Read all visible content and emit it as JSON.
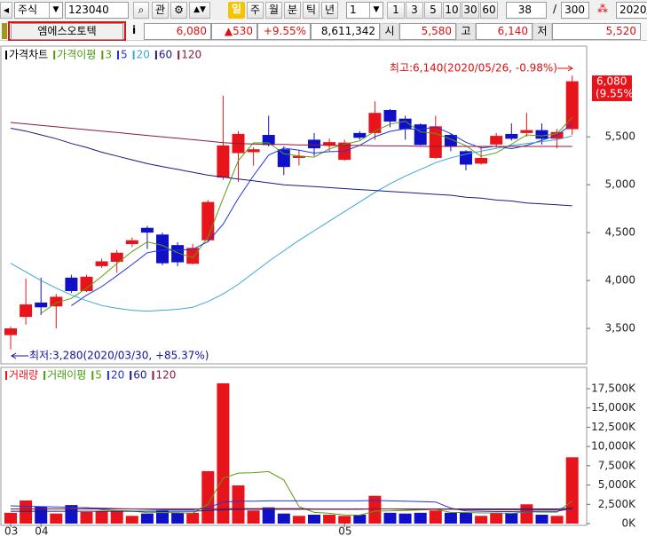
{
  "toolbar": {
    "market": "주식",
    "code": "123040",
    "favorite": "관",
    "active_period": "일",
    "periods": [
      "주",
      "월",
      "분",
      "틱",
      "년"
    ],
    "interval": "1",
    "intervals": [
      "1",
      "3",
      "5",
      "10",
      "30",
      "60"
    ],
    "count": "38",
    "separator": "/",
    "total": "300",
    "date": "2020/"
  },
  "quote": {
    "name": "엠에스오토텍",
    "info": "i",
    "price": "6,080",
    "change": "▲530",
    "change_pct": "+9.55%",
    "volume": "8,611,342",
    "open_label": "시",
    "open": "5,580",
    "high_label": "고",
    "high": "6,140",
    "low_label": "저",
    "low": "5,520"
  },
  "chart_data": [
    {
      "type": "candlestick",
      "title": "가격차트",
      "title_color": "#000000",
      "ma_label": "가격이평",
      "ma_label_color": "#4a9a10",
      "up_color": "#e8141c",
      "down_color": "#1010c8",
      "open": [
        3430,
        3620,
        3770,
        3730,
        4030,
        3890,
        4150,
        4195,
        4380,
        4550,
        4480,
        4370,
        4175,
        4420,
        5075,
        5330,
        5340,
        5520,
        5370,
        5280,
        5470,
        5410,
        5260,
        5540,
        5540,
        5780,
        5690,
        5630,
        5280,
        5520,
        5350,
        5220,
        5420,
        5530,
        5540,
        5570,
        5480,
        5580
      ],
      "high": [
        3520,
        4020,
        4030,
        3860,
        4060,
        4060,
        4230,
        4320,
        4450,
        4570,
        4500,
        4400,
        4380,
        4840,
        5930,
        5560,
        5390,
        5720,
        5400,
        5360,
        5540,
        5480,
        5470,
        5560,
        5870,
        5790,
        5720,
        5640,
        5720,
        5530,
        5360,
        5400,
        5540,
        5640,
        5750,
        5640,
        5580,
        6140
      ],
      "low": [
        3280,
        3540,
        3640,
        3500,
        3870,
        3880,
        4130,
        4080,
        4350,
        4330,
        4160,
        4150,
        4170,
        4400,
        5050,
        5030,
        5200,
        5400,
        5100,
        5200,
        5300,
        5350,
        5250,
        5470,
        5470,
        5600,
        5470,
        5410,
        5270,
        5350,
        5150,
        5210,
        5390,
        5460,
        5500,
        5420,
        5380,
        5520
      ],
      "close": [
        3500,
        3750,
        3720,
        3830,
        3890,
        4040,
        4200,
        4290,
        4420,
        4500,
        4180,
        4190,
        4340,
        4820,
        5410,
        5530,
        5370,
        5415,
        5185,
        5300,
        5380,
        5445,
        5440,
        5490,
        5750,
        5660,
        5580,
        5415,
        5610,
        5400,
        5210,
        5280,
        5510,
        5480,
        5570,
        5480,
        5550,
        6080
      ],
      "series": [
        {
          "name": "3",
          "color": "#5a9e10",
          "values": [
            null,
            null,
            3657,
            3767,
            3813,
            3920,
            4043,
            4177,
            4303,
            4403,
            4367,
            4290,
            4237,
            4450,
            4857,
            5253,
            5437,
            5438,
            5323,
            5300,
            5288,
            5375,
            5422,
            5458,
            5560,
            5633,
            5663,
            5552,
            5535,
            5475,
            5407,
            5297,
            5333,
            5423,
            5520,
            5510,
            5533,
            5703
          ]
        },
        {
          "name": "5",
          "color": "#2233dd",
          "values": [
            null,
            null,
            null,
            null,
            3738,
            3846,
            3936,
            4050,
            4168,
            4290,
            4318,
            4316,
            4326,
            4406,
            4588,
            4858,
            5094,
            5309,
            5382,
            5360,
            5330,
            5345,
            5350,
            5411,
            5501,
            5557,
            5584,
            5579,
            5603,
            5533,
            5443,
            5383,
            5402,
            5376,
            5410,
            5464,
            5518,
            5632
          ]
        },
        {
          "name": "20",
          "color": "#3ba6d8",
          "values": [
            4180,
            4090,
            4000,
            3920,
            3850,
            3790,
            3740,
            3710,
            3690,
            3680,
            3690,
            3700,
            3720,
            3780,
            3860,
            3960,
            4080,
            4200,
            4310,
            4420,
            4520,
            4620,
            4720,
            4820,
            4920,
            5010,
            5090,
            5160,
            5230,
            5280,
            5320,
            5350,
            5380,
            5410,
            5430,
            5450,
            5470,
            5510
          ]
        },
        {
          "name": "60",
          "color": "#1a1a80",
          "values": [
            5590,
            5560,
            5520,
            5480,
            5430,
            5390,
            5340,
            5300,
            5260,
            5220,
            5190,
            5160,
            5130,
            5100,
            5080,
            5060,
            5040,
            5020,
            5000,
            4990,
            4980,
            4970,
            4960,
            4950,
            4940,
            4930,
            4920,
            4910,
            4900,
            4890,
            4870,
            4860,
            4840,
            4830,
            4810,
            4800,
            4790,
            4780
          ]
        },
        {
          "name": "120",
          "color": "#8a1a3a",
          "values": [
            5650,
            5635,
            5620,
            5605,
            5590,
            5575,
            5560,
            5545,
            5530,
            5515,
            5500,
            5485,
            5470,
            5455,
            5440,
            5430,
            5425,
            5420,
            5420,
            5415,
            5415,
            5410,
            5410,
            5410,
            5405,
            5405,
            5405,
            5400,
            5400,
            5400,
            5400,
            5400,
            5400,
            5400,
            5400,
            5400,
            5400,
            5400
          ]
        }
      ],
      "ylim": [
        3130,
        6280
      ],
      "yticks": [
        {
          "value": 3500,
          "label": "3,500"
        },
        {
          "value": 4000,
          "label": "4,000"
        },
        {
          "value": 4500,
          "label": "4,500"
        },
        {
          "value": 5000,
          "label": "5,000"
        },
        {
          "value": 5500,
          "label": "5,500"
        }
      ],
      "annotations": {
        "high": "최고:6,140(2020/05/26, -0.98%)",
        "low": "최저:3,280(2020/03/30, +85.37%)"
      },
      "last_label": {
        "price": "6,080",
        "pct": "(9.55%)"
      }
    },
    {
      "type": "bar",
      "title": "거래량",
      "title_color": "#e8141c",
      "ma_label": "거래이평",
      "ma_label_color": "#4a9a10",
      "categories": [
        "03",
        null,
        "04",
        null,
        null,
        null,
        null,
        null,
        null,
        null,
        null,
        null,
        null,
        null,
        null,
        null,
        null,
        null,
        null,
        null,
        null,
        null,
        "05",
        null,
        null,
        null,
        null,
        null,
        null,
        null,
        null,
        null,
        null,
        null,
        null,
        null,
        null,
        null
      ],
      "values": [
        1400,
        3000,
        2200,
        1300,
        2400,
        1500,
        1600,
        1600,
        1000,
        1300,
        1700,
        1400,
        1400,
        6800,
        18200,
        4950,
        1700,
        2100,
        1300,
        1000,
        1150,
        1150,
        1000,
        1150,
        3600,
        1400,
        1300,
        1400,
        1700,
        1400,
        1400,
        1000,
        1400,
        1400,
        2500,
        1150,
        1000,
        8600
      ],
      "series": [
        {
          "name": "5",
          "color": "#5a9e10",
          "values": [
            null,
            null,
            null,
            null,
            2060,
            2080,
            1800,
            1680,
            1620,
            1400,
            1440,
            1400,
            1360,
            2520,
            5900,
            6550,
            6610,
            6750,
            5650,
            2210,
            1450,
            1340,
            1120,
            1090,
            1610,
            1660,
            1690,
            1770,
            1880,
            1440,
            1440,
            1380,
            1380,
            1320,
            1540,
            1490,
            1490,
            2930
          ]
        },
        {
          "name": "20",
          "color": "#2233dd",
          "values": [
            2300,
            2250,
            2200,
            2150,
            2100,
            2050,
            2000,
            1950,
            1900,
            1850,
            1800,
            1800,
            1800,
            2050,
            2800,
            2900,
            2900,
            2950,
            2950,
            2950,
            2950,
            2950,
            2950,
            2950,
            3000,
            2950,
            2900,
            2850,
            2800,
            2000,
            1650,
            1600,
            1550,
            1550,
            1600,
            1600,
            1600,
            1950
          ]
        },
        {
          "name": "60",
          "color": "#1a1a80",
          "values": [
            1600,
            1600,
            1600,
            1600,
            1600,
            1600,
            1600,
            1600,
            1600,
            1600,
            1600,
            1600,
            1600,
            1700,
            1800,
            1850,
            1850,
            1850,
            1850,
            1850,
            1850,
            1850,
            1850,
            1850,
            1900,
            1900,
            1900,
            1900,
            1900,
            1900,
            1900,
            1900,
            1900,
            1900,
            1900,
            1900,
            1900,
            2000
          ]
        },
        {
          "name": "120",
          "color": "#8a1a3a",
          "values": [
            1900,
            1900,
            1900,
            1900,
            1900,
            1900,
            1900,
            1900,
            1900,
            1900,
            1900,
            1900,
            1900,
            1900,
            1950,
            1950,
            1950,
            1950,
            1950,
            1950,
            1900,
            1900,
            1900,
            1900,
            1900,
            1900,
            1850,
            1850,
            1850,
            1850,
            1800,
            1800,
            1800,
            1800,
            1800,
            1800,
            1800,
            1850
          ]
        }
      ],
      "ylim": [
        0,
        18650
      ],
      "yticks": [
        {
          "value": 0,
          "label": "0K"
        },
        {
          "value": 2500,
          "label": "2,500K"
        },
        {
          "value": 5000,
          "label": "5,000K"
        },
        {
          "value": 7500,
          "label": "7,500K"
        },
        {
          "value": 10000,
          "label": "10,000K"
        },
        {
          "value": 12500,
          "label": "12,500K"
        },
        {
          "value": 15000,
          "label": "15,000K"
        },
        {
          "value": 17500,
          "label": "17,500K"
        }
      ]
    }
  ]
}
